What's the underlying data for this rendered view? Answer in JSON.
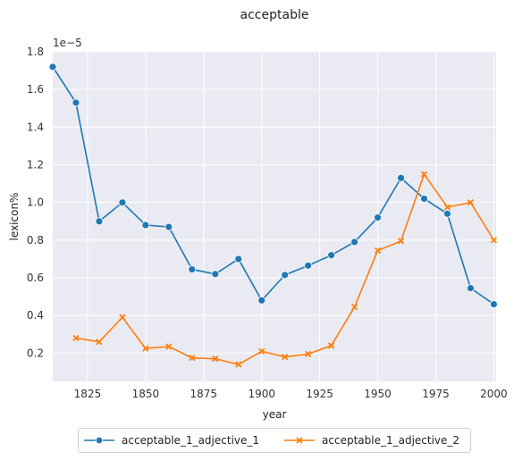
{
  "chart_data": {
    "type": "line",
    "title": "acceptable",
    "xlabel": "year",
    "ylabel": "lexicon%",
    "y_offset_label": "1e−5",
    "xlim": [
      1810,
      2001
    ],
    "ylim": [
      0.05,
      1.8
    ],
    "x_ticks": [
      1825,
      1850,
      1875,
      1900,
      1925,
      1950,
      1975,
      2000
    ],
    "y_ticks": [
      0.2,
      0.4,
      0.6,
      0.8,
      1.0,
      1.2,
      1.4,
      1.6,
      1.8
    ],
    "y_tick_labels": [
      "0.2",
      "0.4",
      "0.6",
      "0.8",
      "1.0",
      "1.2",
      "1.4",
      "1.6",
      "1.8"
    ],
    "grid": true,
    "legend_position": "bottom-center",
    "series": [
      {
        "name": "acceptable_1_adjective_1",
        "color": "#1f77b4",
        "marker": "circle",
        "x": [
          1810,
          1820,
          1830,
          1840,
          1850,
          1860,
          1870,
          1880,
          1890,
          1900,
          1910,
          1920,
          1930,
          1940,
          1950,
          1960,
          1970,
          1980,
          1990,
          2000
        ],
        "y": [
          1.72,
          1.53,
          0.9,
          1.0,
          0.88,
          0.87,
          0.645,
          0.62,
          0.7,
          0.48,
          0.615,
          0.665,
          0.72,
          0.79,
          0.92,
          1.13,
          1.02,
          0.94,
          0.545,
          0.46
        ]
      },
      {
        "name": "acceptable_1_adjective_2",
        "color": "#ff7f0e",
        "marker": "x",
        "x": [
          1820,
          1830,
          1840,
          1850,
          1860,
          1870,
          1880,
          1890,
          1900,
          1910,
          1920,
          1930,
          1940,
          1950,
          1960,
          1970,
          1980,
          1990,
          2000
        ],
        "y": [
          0.28,
          0.26,
          0.39,
          0.225,
          0.235,
          0.175,
          0.17,
          0.14,
          0.21,
          0.18,
          0.195,
          0.24,
          0.445,
          0.745,
          0.795,
          1.15,
          0.975,
          1.0,
          0.8
        ]
      }
    ]
  }
}
